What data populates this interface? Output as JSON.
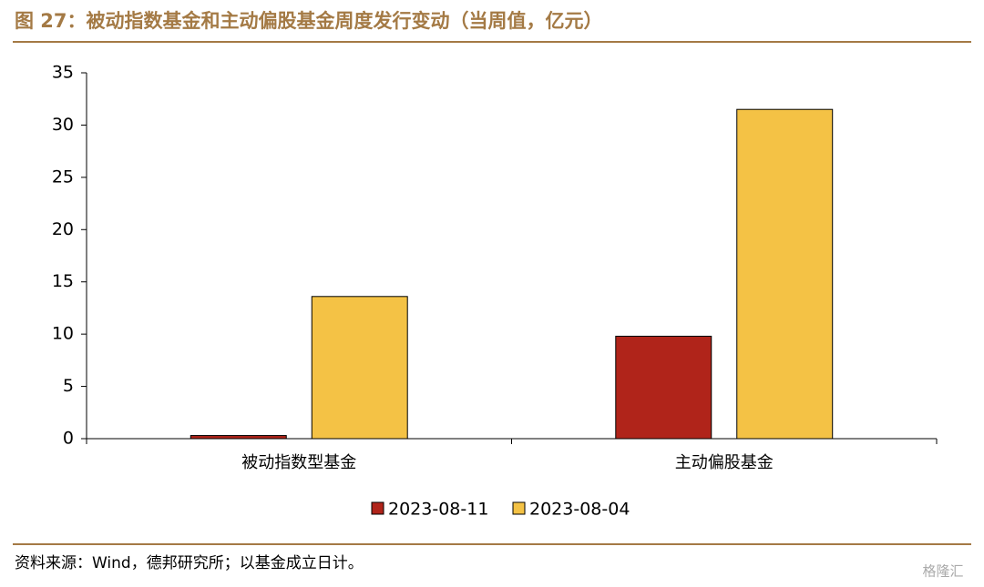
{
  "chart_data": {
    "type": "bar",
    "title": "图 27：被动指数基金和主动偏股基金周度发行变动（当周值，亿元）",
    "categories": [
      "被动指数型基金",
      "主动偏股基金"
    ],
    "series": [
      {
        "name": "2023-08-11",
        "color": "#b0241a",
        "values": [
          0.3,
          9.8
        ]
      },
      {
        "name": "2023-08-04",
        "color": "#f4c245",
        "values": [
          13.6,
          31.5
        ]
      }
    ],
    "ylim": [
      0,
      35
    ],
    "yticks": [
      0,
      5,
      10,
      15,
      20,
      25,
      30,
      35
    ],
    "legend": "bottom",
    "source": "资料来源：Wind，德邦研究所；以基金成立日计。"
  },
  "watermark": "格隆汇"
}
